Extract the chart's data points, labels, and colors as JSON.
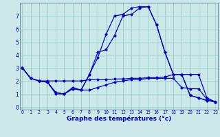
{
  "xlabel": "Graphe des températures (°c)",
  "bg_color": "#cce8e8",
  "grid_color": "#99cccc",
  "line_color": "#0000cc",
  "spine_color": "#6688aa",
  "x_ticks": [
    0,
    1,
    2,
    3,
    4,
    5,
    6,
    7,
    8,
    9,
    10,
    11,
    12,
    13,
    14,
    15,
    16,
    17,
    18,
    19,
    20,
    21,
    22,
    23
  ],
  "y_ticks": [
    0,
    1,
    2,
    3,
    4,
    5,
    6,
    7
  ],
  "xlim": [
    -0.3,
    23.3
  ],
  "ylim": [
    -0.2,
    8.0
  ],
  "series": [
    {
      "x": [
        0,
        1,
        2,
        3,
        4,
        5,
        6,
        7,
        8,
        9,
        10,
        11,
        12,
        13,
        14,
        15,
        16,
        17,
        18,
        19,
        20,
        21,
        22,
        23
      ],
      "y": [
        3.0,
        2.2,
        2.0,
        2.0,
        2.0,
        2.0,
        2.0,
        2.0,
        2.1,
        2.1,
        2.1,
        2.15,
        2.15,
        2.2,
        2.2,
        2.25,
        2.25,
        2.3,
        2.5,
        2.5,
        2.5,
        2.5,
        0.7,
        0.4
      ]
    },
    {
      "x": [
        0,
        1,
        2,
        3,
        4,
        5,
        6,
        7,
        8,
        9,
        10,
        11,
        12,
        13,
        14,
        15,
        16,
        17,
        18,
        19,
        20,
        21,
        22,
        23
      ],
      "y": [
        3.0,
        2.2,
        2.0,
        1.9,
        1.0,
        1.0,
        1.5,
        1.3,
        1.3,
        1.5,
        1.7,
        1.9,
        2.0,
        2.1,
        2.1,
        2.2,
        2.2,
        2.2,
        2.2,
        1.5,
        1.4,
        1.4,
        0.6,
        0.4
      ]
    },
    {
      "x": [
        0,
        1,
        2,
        3,
        4,
        5,
        6,
        7,
        8,
        9,
        10,
        11,
        12,
        13,
        14,
        15,
        16,
        17,
        18,
        19,
        20,
        21,
        22,
        23
      ],
      "y": [
        3.0,
        2.2,
        2.0,
        1.9,
        1.1,
        1.0,
        1.4,
        1.3,
        2.5,
        4.2,
        4.4,
        5.5,
        7.0,
        7.1,
        7.6,
        7.7,
        6.3,
        4.2,
        2.5,
        2.5,
        0.9,
        0.7,
        0.5,
        0.4
      ]
    },
    {
      "x": [
        0,
        1,
        2,
        3,
        4,
        5,
        6,
        7,
        8,
        9,
        10,
        11,
        12,
        13,
        14,
        15,
        16,
        17,
        18,
        19,
        20,
        21,
        22,
        23
      ],
      "y": [
        3.0,
        2.2,
        2.0,
        1.9,
        1.1,
        1.0,
        1.4,
        1.3,
        2.5,
        3.8,
        5.6,
        7.0,
        7.1,
        7.6,
        7.7,
        7.7,
        6.3,
        4.2,
        2.5,
        2.5,
        0.9,
        0.7,
        0.5,
        0.4
      ]
    }
  ]
}
